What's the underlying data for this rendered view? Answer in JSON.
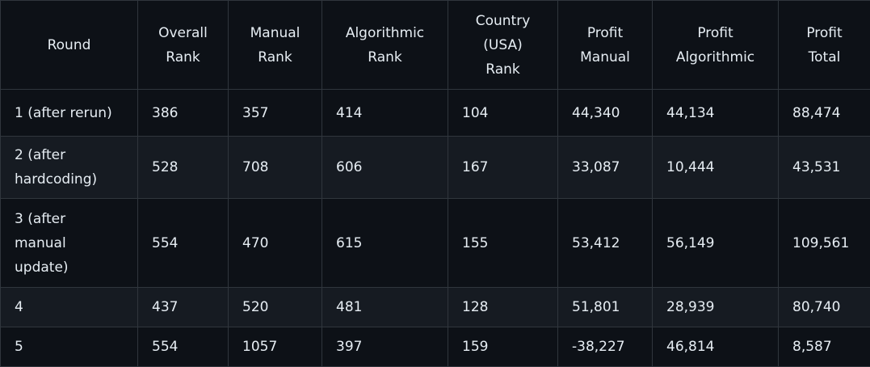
{
  "table": {
    "headers": [
      "Round",
      "Overall\nRank",
      "Manual\nRank",
      "Algorithmic\nRank",
      "Country\n(USA)\nRank",
      "Profit\nManual",
      "Profit\nAlgorithmic",
      "Profit\nTotal"
    ],
    "rows": [
      [
        "1 (after rerun)",
        "386",
        "357",
        "414",
        "104",
        "44,340",
        "44,134",
        "88,474"
      ],
      [
        "2 (after\nhardcoding)",
        "528",
        "708",
        "606",
        "167",
        "33,087",
        "10,444",
        "43,531"
      ],
      [
        "3 (after\nmanual\nupdate)",
        "554",
        "470",
        "615",
        "155",
        "53,412",
        "56,149",
        "109,561"
      ],
      [
        "4",
        "437",
        "520",
        "481",
        "128",
        "51,801",
        "28,939",
        "80,740"
      ],
      [
        "5",
        "554",
        "1057",
        "397",
        "159",
        "-38,227",
        "46,814",
        "8,587"
      ]
    ]
  }
}
